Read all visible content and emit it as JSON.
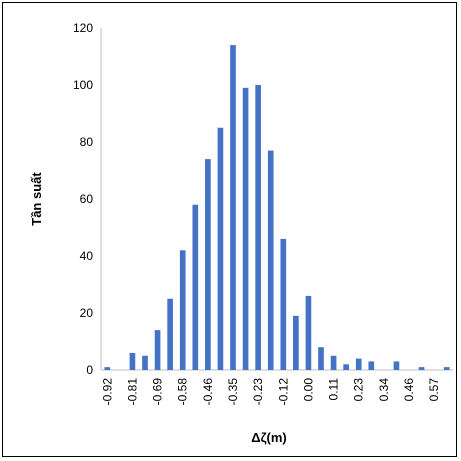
{
  "chart_data": {
    "type": "bar",
    "xlabel": "Δζ(m)",
    "ylabel": "Tần suất",
    "ylim": [
      0,
      120
    ],
    "y_ticks": [
      0,
      20,
      40,
      60,
      80,
      100,
      120
    ],
    "x_tick_labels": [
      "-0.92",
      "-0.81",
      "-0.69",
      "-0.58",
      "-0.46",
      "-0.35",
      "-0.23",
      "-0.12",
      "0.00",
      "0.11",
      "0.23",
      "0.34",
      "0.46",
      "0.57"
    ],
    "categories": [
      "-0.92",
      "-0.86",
      "-0.81",
      "-0.75",
      "-0.69",
      "-0.63",
      "-0.58",
      "-0.52",
      "-0.46",
      "-0.40",
      "-0.35",
      "-0.29",
      "-0.23",
      "-0.17",
      "-0.12",
      "-0.06",
      "0.00",
      "0.06",
      "0.11",
      "0.17",
      "0.23",
      "0.29",
      "0.34",
      "0.40",
      "0.46",
      "0.52",
      "0.57",
      "0.63"
    ],
    "values": [
      1,
      0,
      6,
      5,
      14,
      25,
      42,
      58,
      74,
      85,
      114,
      99,
      100,
      77,
      46,
      19,
      26,
      8,
      5,
      2,
      4,
      3,
      0,
      3,
      0,
      1,
      0,
      1
    ],
    "grid": false,
    "legend": "none",
    "bar_color": "#4472C4"
  }
}
